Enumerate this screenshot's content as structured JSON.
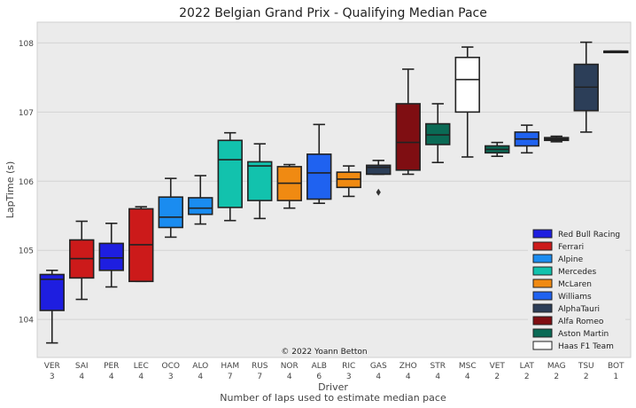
{
  "chart_data": {
    "type": "box",
    "title": "2022 Belgian Grand Prix - Qualifying Median Pace",
    "xlabel": "Driver",
    "xlabel2": "Number of laps used to estimate median pace",
    "ylabel": "LapTime (s)",
    "ylim": [
      103.45,
      108.3
    ],
    "yticks": [
      104,
      105,
      106,
      107,
      108
    ],
    "grid": true,
    "watermark": "© 2022 Yoann Betton",
    "legend_position": "bottom-right",
    "teams": [
      {
        "name": "Red Bull Racing",
        "color": "#1e1ee0"
      },
      {
        "name": "Ferrari",
        "color": "#cc1a1a"
      },
      {
        "name": "Alpine",
        "color": "#1a8cf0"
      },
      {
        "name": "Mercedes",
        "color": "#12c2ad"
      },
      {
        "name": "McLaren",
        "color": "#f08a12"
      },
      {
        "name": "Williams",
        "color": "#1f62f0"
      },
      {
        "name": "AlphaTauri",
        "color": "#2c3e58"
      },
      {
        "name": "Alfa Romeo",
        "color": "#7f0e12"
      },
      {
        "name": "Aston Martin",
        "color": "#0a6a55"
      },
      {
        "name": "Haas F1 Team",
        "color": "#ffffff"
      }
    ],
    "drivers": [
      {
        "driver": "VER",
        "laps": "3",
        "team": 0,
        "min": 103.66,
        "q1": 104.13,
        "median": 104.58,
        "q3": 104.65,
        "max": 104.71,
        "outliers": []
      },
      {
        "driver": "SAI",
        "laps": "4",
        "team": 1,
        "min": 104.29,
        "q1": 104.6,
        "median": 104.88,
        "q3": 105.15,
        "max": 105.42,
        "outliers": []
      },
      {
        "driver": "PER",
        "laps": "4",
        "team": 0,
        "min": 104.47,
        "q1": 104.71,
        "median": 104.89,
        "q3": 105.1,
        "max": 105.39,
        "outliers": []
      },
      {
        "driver": "LEC",
        "laps": "4",
        "team": 1,
        "min": 104.55,
        "q1": 104.55,
        "median": 105.08,
        "q3": 105.6,
        "max": 105.63,
        "outliers": []
      },
      {
        "driver": "OCO",
        "laps": "3",
        "team": 2,
        "min": 105.19,
        "q1": 105.33,
        "median": 105.48,
        "q3": 105.77,
        "max": 106.04,
        "outliers": []
      },
      {
        "driver": "ALO",
        "laps": "4",
        "team": 2,
        "min": 105.38,
        "q1": 105.52,
        "median": 105.61,
        "q3": 105.76,
        "max": 106.08,
        "outliers": []
      },
      {
        "driver": "HAM",
        "laps": "7",
        "team": 3,
        "min": 105.43,
        "q1": 105.62,
        "median": 106.31,
        "q3": 106.59,
        "max": 106.7,
        "outliers": []
      },
      {
        "driver": "RUS",
        "laps": "7",
        "team": 3,
        "min": 105.46,
        "q1": 105.72,
        "median": 106.22,
        "q3": 106.28,
        "max": 106.54,
        "outliers": []
      },
      {
        "driver": "NOR",
        "laps": "4",
        "team": 4,
        "min": 105.61,
        "q1": 105.72,
        "median": 105.97,
        "q3": 106.21,
        "max": 106.24,
        "outliers": []
      },
      {
        "driver": "ALB",
        "laps": "6",
        "team": 5,
        "min": 105.68,
        "q1": 105.74,
        "median": 106.12,
        "q3": 106.39,
        "max": 106.82,
        "outliers": []
      },
      {
        "driver": "RIC",
        "laps": "3",
        "team": 4,
        "min": 105.78,
        "q1": 105.91,
        "median": 106.03,
        "q3": 106.13,
        "max": 106.22,
        "outliers": []
      },
      {
        "driver": "GAS",
        "laps": "4",
        "team": 6,
        "min": 106.1,
        "q1": 106.1,
        "median": 106.2,
        "q3": 106.23,
        "max": 106.3,
        "outliers": [
          105.84
        ]
      },
      {
        "driver": "ZHO",
        "laps": "4",
        "team": 7,
        "min": 106.1,
        "q1": 106.16,
        "median": 106.56,
        "q3": 107.12,
        "max": 107.62,
        "outliers": []
      },
      {
        "driver": "STR",
        "laps": "4",
        "team": 8,
        "min": 106.27,
        "q1": 106.53,
        "median": 106.67,
        "q3": 106.83,
        "max": 107.12,
        "outliers": []
      },
      {
        "driver": "MSC",
        "laps": "4",
        "team": 9,
        "min": 106.35,
        "q1": 107.0,
        "median": 107.47,
        "q3": 107.79,
        "max": 107.94,
        "outliers": []
      },
      {
        "driver": "VET",
        "laps": "2",
        "team": 8,
        "min": 106.36,
        "q1": 106.41,
        "median": 106.46,
        "q3": 106.51,
        "max": 106.56,
        "outliers": []
      },
      {
        "driver": "LAT",
        "laps": "2",
        "team": 5,
        "min": 106.41,
        "q1": 106.51,
        "median": 106.61,
        "q3": 106.71,
        "max": 106.81,
        "outliers": []
      },
      {
        "driver": "MAG",
        "laps": "2",
        "team": 9,
        "min": 106.57,
        "q1": 106.59,
        "median": 106.61,
        "q3": 106.63,
        "max": 106.65,
        "outliers": []
      },
      {
        "driver": "TSU",
        "laps": "2",
        "team": 6,
        "min": 106.71,
        "q1": 107.02,
        "median": 107.36,
        "q3": 107.69,
        "max": 108.01,
        "outliers": []
      },
      {
        "driver": "BOT",
        "laps": "1",
        "team": 7,
        "min": 107.88,
        "q1": 107.88,
        "median": 107.88,
        "q3": 107.88,
        "max": 107.88,
        "outliers": []
      }
    ]
  }
}
